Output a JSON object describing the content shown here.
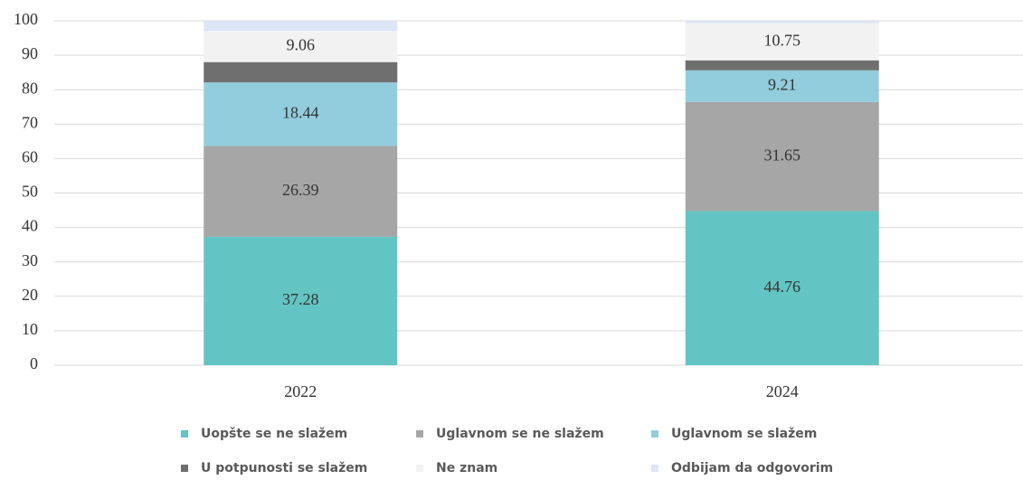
{
  "chart_data": {
    "type": "stacked_bar",
    "categories": [
      "2022",
      "2024"
    ],
    "series": [
      {
        "name": "Uopšte se ne slažem",
        "color": "#62c5c3",
        "values": [
          37.28,
          44.76
        ]
      },
      {
        "name": "Uglavnom se ne slažem",
        "color": "#a6a6a6",
        "values": [
          26.39,
          31.65
        ]
      },
      {
        "name": "Uglavnom se slažem",
        "color": "#92cddd",
        "values": [
          18.44,
          9.21
        ]
      },
      {
        "name": "U potpunosti se slažem",
        "color": "#6f6f6f",
        "values": [
          5.9,
          2.9
        ],
        "value_labels": [
          null,
          null
        ]
      },
      {
        "name": "Ne znam",
        "color": "#f2f2f2",
        "values": [
          9.06,
          10.75
        ]
      },
      {
        "name": "Odbijam da odgovorim",
        "color": "#dde6f6",
        "values": [
          2.9,
          0.7
        ],
        "value_labels": [
          null,
          null
        ]
      }
    ],
    "ylim": [
      0,
      100
    ],
    "yticks": [
      0,
      10,
      20,
      30,
      40,
      50,
      60,
      70,
      80,
      90,
      100
    ],
    "grid": true
  }
}
